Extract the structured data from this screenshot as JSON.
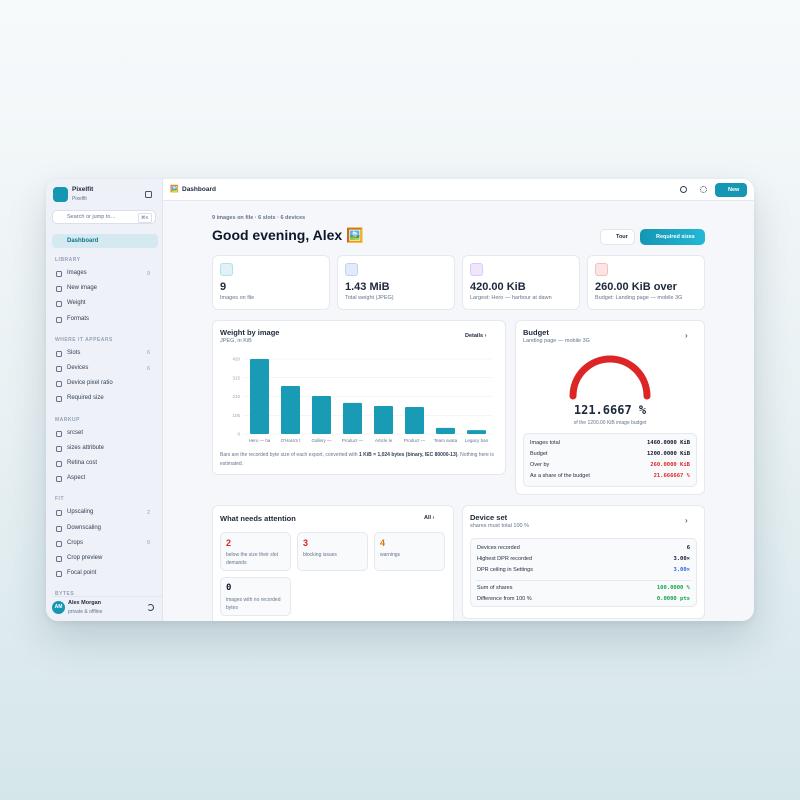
{
  "app": {
    "name": "Pixelfit",
    "workspace": "Pixelfit",
    "search": "Search or jump to…",
    "shortcut": "⌘K"
  },
  "nav": {
    "active": "Dashboard",
    "sections": [
      {
        "title": "LIBRARY",
        "items": [
          {
            "label": "Images",
            "count": 9
          },
          {
            "label": "New image"
          },
          {
            "label": "Weight"
          },
          {
            "label": "Formats"
          }
        ]
      },
      {
        "title": "WHERE IT APPEARS",
        "items": [
          {
            "label": "Slots",
            "count": 6
          },
          {
            "label": "Devices",
            "count": 6
          },
          {
            "label": "Device pixel ratio"
          },
          {
            "label": "Required size"
          }
        ]
      },
      {
        "title": "MARKUP",
        "items": [
          {
            "label": "srcset"
          },
          {
            "label": "sizes attribute"
          },
          {
            "label": "Retina cost"
          },
          {
            "label": "Aspect"
          }
        ]
      },
      {
        "title": "FIT",
        "items": [
          {
            "label": "Upscaling",
            "count": 2
          },
          {
            "label": "Downscaling"
          },
          {
            "label": "Crops",
            "count": 0
          },
          {
            "label": "Crop preview"
          },
          {
            "label": "Focal point"
          }
        ]
      },
      {
        "title": "BYTES",
        "items": []
      }
    ]
  },
  "user": {
    "initials": "AM",
    "name": "Alex Morgan",
    "status": "private & offline"
  },
  "header": {
    "icon": "🖼️",
    "title": "Dashboard",
    "new": "New"
  },
  "page": {
    "summary": "9 images on file · 6 slots · 6 devices",
    "greeting": "Good evening, Alex 🖼️",
    "tour": "Tour",
    "required": "Required sizes"
  },
  "stats": [
    {
      "value": "9",
      "label": "Images on file"
    },
    {
      "value": "1.43 MiB",
      "label": "Total weight (JPEG)"
    },
    {
      "value": "420.00 KiB",
      "label": "Largest: Hero — harbour at dawn"
    },
    {
      "value": "260.00 KiB over",
      "label": "Budget: Landing page — mobile 3G"
    }
  ],
  "chart_data": {
    "type": "bar",
    "title": "Weight by image",
    "subtitle": "JPEG, in KiB",
    "action": "Details",
    "categories": [
      "Hero — ha",
      "O'Hara's t",
      "Gallery —",
      "Product —",
      "Article le",
      "Product —",
      "Team avata",
      "Legacy ban"
    ],
    "values": [
      420,
      269,
      213,
      174,
      157,
      151,
      34,
      22
    ],
    "color": "#1a9bb5",
    "ylim": [
      0,
      420
    ],
    "yticks": [
      0,
      105,
      210,
      315,
      420
    ],
    "grid": true,
    "note_before": "Bars are the recorded byte size of each export, converted with ",
    "note_bold": "1 KiB = 1,024 bytes (binary, IEC 80000-13)",
    "note_after": ". Nothing here is estimated."
  },
  "budget": {
    "title": "Budget",
    "subtitle": "Landing page — mobile 3G",
    "percent": "121.6667 %",
    "caption": "of the 1200.00 KiB image budget",
    "rows": [
      {
        "label": "Images total",
        "value": "1460.0000 KiB"
      },
      {
        "label": "Budget",
        "value": "1200.0000 KiB"
      },
      {
        "label": "Over by",
        "value": "260.0000 KiB"
      },
      {
        "label": "As a share of the budget",
        "value": "21.666667 %"
      }
    ]
  },
  "attention": {
    "title": "What needs attention",
    "action": "All",
    "items": [
      {
        "value": "2",
        "label": "below the size their slot demands"
      },
      {
        "value": "3",
        "label": "blocking issues"
      },
      {
        "value": "4",
        "label": "warnings"
      },
      {
        "value": "0",
        "label": "images with no recorded bytes"
      }
    ]
  },
  "device_set": {
    "title": "Device set",
    "subtitle": "shares must total 100 %",
    "rows": [
      {
        "label": "Devices recorded",
        "value": "6"
      },
      {
        "label": "Highest DPR recorded",
        "value": "3.00×"
      },
      {
        "label": "DPR ceiling in Settings",
        "value": "3.00×"
      },
      {
        "label": "Sum of shares",
        "value": "100.0000 %"
      },
      {
        "label": "Difference from 100 %",
        "value": "0.0000 pts"
      }
    ]
  }
}
